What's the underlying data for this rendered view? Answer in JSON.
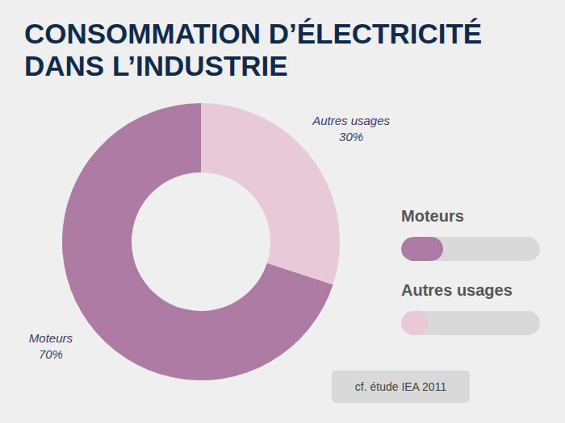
{
  "chart_data": {
    "type": "pie",
    "title": "CONSOMMATION D’ÉLECTRICITÉ DANS L’INDUSTRIE",
    "categories": [
      "Moteurs",
      "Autres usages"
    ],
    "values": [
      70,
      30
    ],
    "value_labels": [
      "70%",
      "30%"
    ],
    "colors": [
      "#ad7ba4",
      "#e8c9d8"
    ],
    "data_labels": true,
    "legend": "right",
    "annotations": [
      "cf. étude IEA 2011"
    ]
  }
}
